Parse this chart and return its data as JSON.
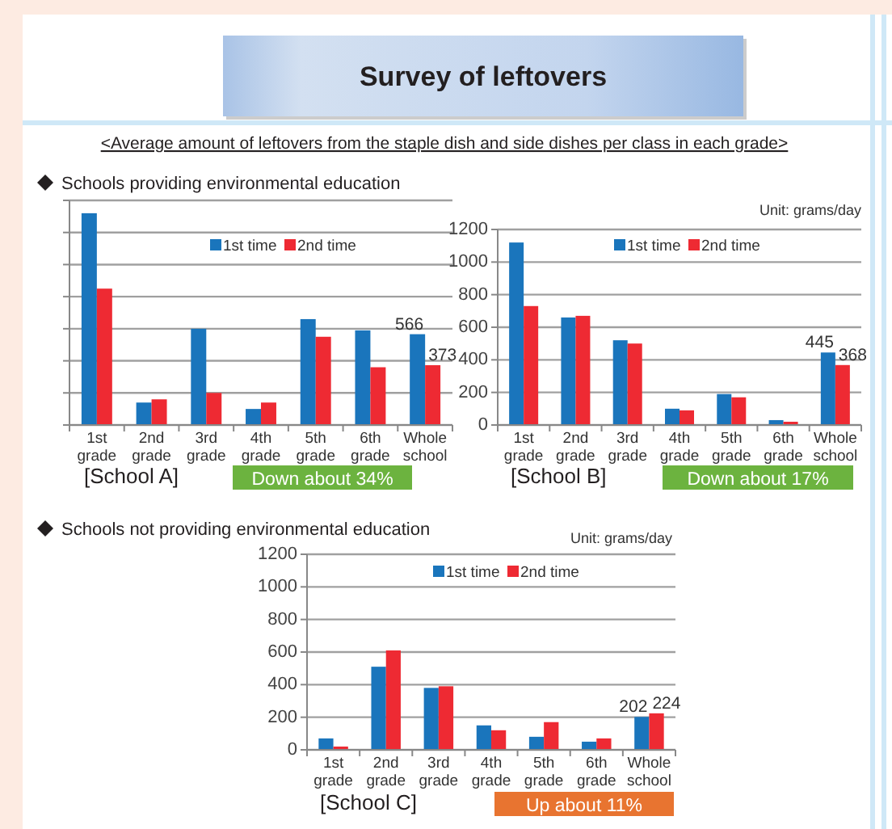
{
  "chart_data": [
    {
      "type": "bar",
      "title": "Survey of leftovers",
      "subtitle": "<Average amount of leftovers from the staple dish and side dishes per class in each grade>",
      "xlabel": "[School A]",
      "annotations": [
        "Schools providing environmental education",
        "Down about 34%"
      ],
      "categories": [
        "1st grade",
        "2nd grade",
        "3rd grade",
        "4th grade",
        "5th grade",
        "6th grade",
        "Whole school"
      ],
      "series": [
        {
          "name": "1st time",
          "color": "#1a75bc",
          "values": [
            1320,
            140,
            600,
            100,
            660,
            590,
            566
          ],
          "value_labels": [
            null,
            null,
            null,
            null,
            null,
            null,
            "566"
          ]
        },
        {
          "name": "2nd time",
          "color": "#ee2a33",
          "values": [
            850,
            160,
            200,
            140,
            550,
            360,
            373
          ],
          "value_labels": [
            null,
            null,
            null,
            null,
            null,
            null,
            "373"
          ]
        }
      ],
      "ylim": [
        0,
        1400
      ],
      "yticks": [
        {
          "value": 0,
          "label": null
        },
        {
          "value": 200,
          "label": null
        },
        {
          "value": 400,
          "label": null
        },
        {
          "value": 600,
          "label": null
        },
        {
          "value": 800,
          "label": null
        },
        {
          "value": 1000,
          "label": null
        },
        {
          "value": 1200,
          "label": null
        },
        {
          "value": 1400,
          "label": null
        }
      ],
      "tick_labels": "x",
      "grid": "y",
      "legend": "top"
    },
    {
      "type": "bar",
      "xlabel": "[School B]",
      "annotations": [
        "Unit: grams/day",
        "Down about 17%"
      ],
      "categories": [
        "1st grade",
        "2nd grade",
        "3rd grade",
        "4th grade",
        "5th grade",
        "6th grade",
        "Whole school"
      ],
      "series": [
        {
          "name": "1st time",
          "color": "#1a75bc",
          "values": [
            1120,
            660,
            520,
            100,
            190,
            30,
            445
          ],
          "value_labels": [
            null,
            null,
            null,
            null,
            null,
            null,
            "445"
          ]
        },
        {
          "name": "2nd time",
          "color": "#ee2a33",
          "values": [
            730,
            670,
            500,
            90,
            170,
            20,
            368
          ],
          "value_labels": [
            null,
            null,
            null,
            null,
            null,
            null,
            "368"
          ]
        }
      ],
      "ylim": [
        0,
        1200
      ],
      "yticks": [
        0,
        200,
        400,
        600,
        800,
        1000,
        1200
      ],
      "grid": "y",
      "legend": "top"
    },
    {
      "type": "bar",
      "xlabel": "[School C]",
      "annotations": [
        "Schools not providing environmental education",
        "Unit: grams/day",
        "Up about 11%"
      ],
      "categories": [
        "1st grade",
        "2nd grade",
        "3rd grade",
        "4th grade",
        "5th grade",
        "6th grade",
        "Whole school"
      ],
      "series": [
        {
          "name": "1st time",
          "color": "#1a75bc",
          "values": [
            70,
            510,
            380,
            150,
            80,
            50,
            202
          ],
          "value_labels": [
            null,
            null,
            null,
            null,
            null,
            null,
            "202"
          ]
        },
        {
          "name": "2nd time",
          "color": "#ee2a33",
          "values": [
            20,
            610,
            390,
            120,
            170,
            70,
            224
          ],
          "value_labels": [
            null,
            null,
            null,
            null,
            null,
            null,
            "224"
          ]
        }
      ],
      "ylim": [
        0,
        1200
      ],
      "yticks": [
        0,
        200,
        400,
        600,
        800,
        1000,
        1200
      ],
      "grid": "y",
      "legend": "top"
    }
  ]
}
